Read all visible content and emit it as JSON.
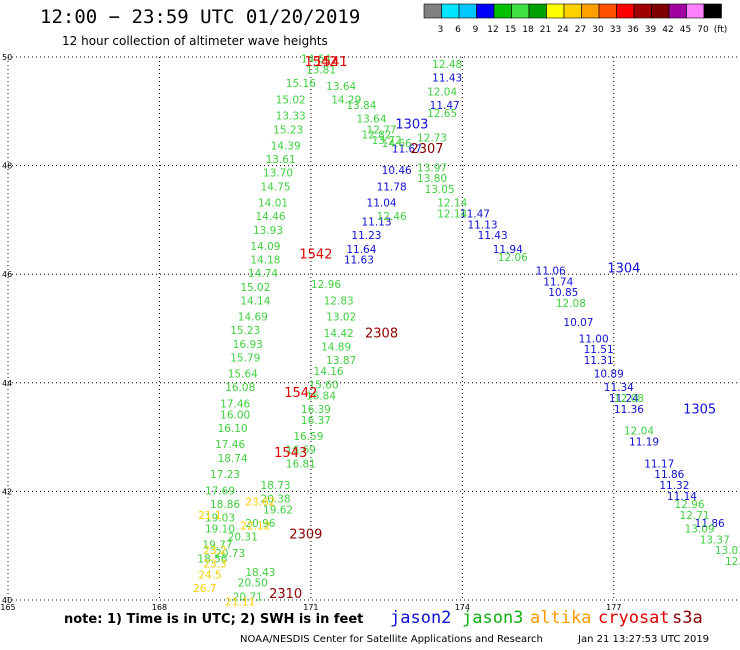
{
  "header": {
    "title": "12:00 − 23:59 UTC 01/20/2019",
    "subtitle": "12 hour collection of altimeter wave heights"
  },
  "colorbar": {
    "labels": [
      "3",
      "6",
      "9",
      "12",
      "15",
      "18",
      "21",
      "24",
      "27",
      "30",
      "33",
      "36",
      "39",
      "42",
      "45",
      "70",
      "(ft)"
    ],
    "colors": [
      "#808080",
      "#00e5ff",
      "#00c8ff",
      "#0000ff",
      "#00c000",
      "#40e040",
      "#00a000",
      "#ffff00",
      "#ffd000",
      "#ffa000",
      "#ff5000",
      "#ff0000",
      "#a00000",
      "#800000",
      "#a000a0",
      "#ff80ff",
      "#000000"
    ]
  },
  "footer": {
    "note": "note: 1) Time is in UTC; 2) SWH is in feet",
    "credit": "NOAA/NESDIS Center for Satellite Applications and Research",
    "timestamp": "Jan 21 13:27:53 UTC 2019"
  },
  "satellites": [
    {
      "name": "jason2",
      "color": "#1010d0"
    },
    {
      "name": "jason3",
      "color": "#10b010"
    },
    {
      "name": "altika",
      "color": "#ff9a00"
    },
    {
      "name": "cryosat",
      "color": "#e00000"
    },
    {
      "name": "s3a",
      "color": "#8b0000"
    }
  ],
  "chart_data": {
    "type": "scatter",
    "title": "12:00 − 23:59 UTC 01/20/2019",
    "subtitle": "12 hour collection of altimeter wave heights",
    "xlim": [
      165,
      179.5
    ],
    "ylim": [
      40,
      50
    ],
    "xticks": [
      165,
      168,
      171,
      174,
      177
    ],
    "yticks": [
      40,
      42,
      44,
      46,
      48,
      50
    ],
    "unit": "ft",
    "grid": true,
    "time_labels": [
      {
        "text": "1542",
        "lon": 171.2,
        "lat": 49.9,
        "color": "#e00000"
      },
      {
        "text": "1541",
        "lon": 171.4,
        "lat": 49.9,
        "color": "#e00000"
      },
      {
        "text": "1303",
        "lon": 173.0,
        "lat": 48.75,
        "color": "#1010d0"
      },
      {
        "text": "2307",
        "lon": 173.3,
        "lat": 48.3,
        "color": "#8b0000"
      },
      {
        "text": "1542",
        "lon": 171.1,
        "lat": 46.35,
        "color": "#e00000"
      },
      {
        "text": "1304",
        "lon": 177.2,
        "lat": 46.1,
        "color": "#1010d0"
      },
      {
        "text": "2308",
        "lon": 172.4,
        "lat": 44.9,
        "color": "#8b0000"
      },
      {
        "text": "1542",
        "lon": 170.8,
        "lat": 43.8,
        "color": "#e00000"
      },
      {
        "text": "1305",
        "lon": 178.7,
        "lat": 43.5,
        "color": "#1010d0"
      },
      {
        "text": "1543",
        "lon": 170.6,
        "lat": 42.7,
        "color": "#e00000"
      },
      {
        "text": "2309",
        "lon": 170.9,
        "lat": 41.2,
        "color": "#8b0000"
      },
      {
        "text": "2310",
        "lon": 170.5,
        "lat": 40.1,
        "color": "#8b0000"
      }
    ],
    "series": [
      {
        "name": "jason2",
        "color": "#1010d0",
        "points": [
          {
            "lon": 173.7,
            "lat": 49.6,
            "v": "11.43"
          },
          {
            "lon": 173.65,
            "lat": 49.1,
            "v": "11.47"
          },
          {
            "lon": 172.9,
            "lat": 48.3,
            "v": "11.67"
          },
          {
            "lon": 172.7,
            "lat": 47.9,
            "v": "10.46"
          },
          {
            "lon": 172.6,
            "lat": 47.6,
            "v": "11.78"
          },
          {
            "lon": 172.4,
            "lat": 47.3,
            "v": "11.04"
          },
          {
            "lon": 172.3,
            "lat": 46.95,
            "v": "11.13"
          },
          {
            "lon": 172.1,
            "lat": 46.7,
            "v": "11.23"
          },
          {
            "lon": 172.0,
            "lat": 46.45,
            "v": "11.64"
          },
          {
            "lon": 171.95,
            "lat": 46.25,
            "v": "11.63"
          },
          {
            "lon": 174.25,
            "lat": 47.1,
            "v": "11.47"
          },
          {
            "lon": 174.4,
            "lat": 46.9,
            "v": "11.13"
          },
          {
            "lon": 174.6,
            "lat": 46.7,
            "v": "11.43"
          },
          {
            "lon": 174.9,
            "lat": 46.45,
            "v": "11.94"
          },
          {
            "lon": 175.75,
            "lat": 46.05,
            "v": "11.06"
          },
          {
            "lon": 175.9,
            "lat": 45.85,
            "v": "11.74"
          },
          {
            "lon": 176.0,
            "lat": 45.65,
            "v": "10.85"
          },
          {
            "lon": 176.3,
            "lat": 45.1,
            "v": "10.07"
          },
          {
            "lon": 176.6,
            "lat": 44.8,
            "v": "11.00"
          },
          {
            "lon": 176.7,
            "lat": 44.6,
            "v": "11.51"
          },
          {
            "lon": 176.7,
            "lat": 44.4,
            "v": "11.31"
          },
          {
            "lon": 176.9,
            "lat": 44.15,
            "v": "10.89"
          },
          {
            "lon": 177.1,
            "lat": 43.9,
            "v": "11.34"
          },
          {
            "lon": 177.2,
            "lat": 43.7,
            "v": "11.24"
          },
          {
            "lon": 177.3,
            "lat": 43.5,
            "v": "11.36"
          },
          {
            "lon": 177.6,
            "lat": 42.9,
            "v": "11.19"
          },
          {
            "lon": 177.9,
            "lat": 42.5,
            "v": "11.17"
          },
          {
            "lon": 178.1,
            "lat": 42.3,
            "v": "11.86"
          },
          {
            "lon": 178.2,
            "lat": 42.1,
            "v": "11.32"
          },
          {
            "lon": 178.35,
            "lat": 41.9,
            "v": "11.14"
          },
          {
            "lon": 178.9,
            "lat": 41.4,
            "v": "11.86"
          }
        ]
      },
      {
        "name": "jason3",
        "color": "#40d040",
        "points": [
          {
            "lon": 173.7,
            "lat": 49.85,
            "v": "12.48"
          },
          {
            "lon": 173.6,
            "lat": 49.35,
            "v": "12.04"
          },
          {
            "lon": 173.6,
            "lat": 48.95,
            "v": "12.65"
          },
          {
            "lon": 173.4,
            "lat": 48.5,
            "v": "12.73"
          },
          {
            "lon": 172.3,
            "lat": 48.55,
            "v": "12.82"
          },
          {
            "lon": 172.7,
            "lat": 48.4,
            "v": "14.66"
          },
          {
            "lon": 173.4,
            "lat": 47.95,
            "v": "13.97"
          },
          {
            "lon": 173.4,
            "lat": 47.75,
            "v": "13.80"
          },
          {
            "lon": 173.55,
            "lat": 47.55,
            "v": "13.05"
          },
          {
            "lon": 173.8,
            "lat": 47.3,
            "v": "12.14"
          },
          {
            "lon": 173.8,
            "lat": 47.1,
            "v": "12.14"
          },
          {
            "lon": 172.6,
            "lat": 47.05,
            "v": "12.46"
          },
          {
            "lon": 175.0,
            "lat": 46.3,
            "v": "12.06"
          },
          {
            "lon": 176.15,
            "lat": 45.45,
            "v": "12.08"
          },
          {
            "lon": 177.3,
            "lat": 43.7,
            "v": "12.08"
          },
          {
            "lon": 177.5,
            "lat": 43.1,
            "v": "12.04"
          },
          {
            "lon": 178.5,
            "lat": 41.75,
            "v": "12.96"
          },
          {
            "lon": 178.6,
            "lat": 41.55,
            "v": "12.71"
          },
          {
            "lon": 178.7,
            "lat": 41.3,
            "v": "13.09"
          },
          {
            "lon": 179.0,
            "lat": 41.1,
            "v": "13.37"
          },
          {
            "lon": 179.3,
            "lat": 40.9,
            "v": "13.03"
          },
          {
            "lon": 179.5,
            "lat": 40.7,
            "v": "12.91"
          },
          {
            "lon": 171.1,
            "lat": 49.95,
            "v": "14.64"
          },
          {
            "lon": 171.2,
            "lat": 49.75,
            "v": "13.81"
          },
          {
            "lon": 171.6,
            "lat": 49.45,
            "v": "13.64"
          },
          {
            "lon": 171.7,
            "lat": 49.2,
            "v": "14.29"
          },
          {
            "lon": 172.0,
            "lat": 49.1,
            "v": "13.84"
          },
          {
            "lon": 172.2,
            "lat": 48.85,
            "v": "13.64"
          },
          {
            "lon": 172.4,
            "lat": 48.65,
            "v": "12.77"
          },
          {
            "lon": 172.5,
            "lat": 48.45,
            "v": "13.72"
          },
          {
            "lon": 170.8,
            "lat": 49.5,
            "v": "15.16"
          },
          {
            "lon": 170.6,
            "lat": 49.2,
            "v": "15.02"
          },
          {
            "lon": 170.6,
            "lat": 48.9,
            "v": "13.33"
          },
          {
            "lon": 170.55,
            "lat": 48.65,
            "v": "15.23"
          },
          {
            "lon": 170.5,
            "lat": 48.35,
            "v": "14.39"
          },
          {
            "lon": 170.4,
            "lat": 48.1,
            "v": "13.61"
          },
          {
            "lon": 170.35,
            "lat": 47.85,
            "v": "13.70"
          },
          {
            "lon": 170.3,
            "lat": 47.6,
            "v": "14.75"
          },
          {
            "lon": 170.25,
            "lat": 47.3,
            "v": "14.01"
          },
          {
            "lon": 170.2,
            "lat": 47.05,
            "v": "14.46"
          },
          {
            "lon": 170.15,
            "lat": 46.8,
            "v": "13.93"
          },
          {
            "lon": 170.1,
            "lat": 46.5,
            "v": "14.09"
          },
          {
            "lon": 170.1,
            "lat": 46.25,
            "v": "14.18"
          },
          {
            "lon": 170.05,
            "lat": 46.0,
            "v": "14.74"
          },
          {
            "lon": 169.9,
            "lat": 45.75,
            "v": "15.02"
          },
          {
            "lon": 169.9,
            "lat": 45.5,
            "v": "14.14"
          },
          {
            "lon": 169.85,
            "lat": 45.2,
            "v": "14.69"
          },
          {
            "lon": 169.7,
            "lat": 44.95,
            "v": "15.23"
          },
          {
            "lon": 169.75,
            "lat": 44.7,
            "v": "16.93"
          },
          {
            "lon": 169.7,
            "lat": 44.45,
            "v": "15.79"
          },
          {
            "lon": 169.65,
            "lat": 44.15,
            "v": "15.64"
          },
          {
            "lon": 169.6,
            "lat": 43.9,
            "v": "16.08"
          },
          {
            "lon": 169.5,
            "lat": 43.6,
            "v": "17.46"
          },
          {
            "lon": 169.5,
            "lat": 43.4,
            "v": "16.00"
          },
          {
            "lon": 169.45,
            "lat": 43.15,
            "v": "16.10"
          },
          {
            "lon": 169.4,
            "lat": 42.85,
            "v": "17.46"
          },
          {
            "lon": 169.45,
            "lat": 42.6,
            "v": "18.74"
          },
          {
            "lon": 169.3,
            "lat": 42.3,
            "v": "17.23"
          },
          {
            "lon": 169.2,
            "lat": 42.0,
            "v": "17.69"
          },
          {
            "lon": 169.3,
            "lat": 41.75,
            "v": "18.86"
          },
          {
            "lon": 169.2,
            "lat": 41.5,
            "v": "19.03"
          },
          {
            "lon": 169.2,
            "lat": 41.3,
            "v": "19.10"
          },
          {
            "lon": 169.15,
            "lat": 41.0,
            "v": "19.77"
          },
          {
            "lon": 169.05,
            "lat": 40.75,
            "v": "18.56"
          },
          {
            "lon": 171.3,
            "lat": 45.8,
            "v": "12.96"
          },
          {
            "lon": 171.55,
            "lat": 45.5,
            "v": "12.83"
          },
          {
            "lon": 171.6,
            "lat": 45.2,
            "v": "13.02"
          },
          {
            "lon": 171.55,
            "lat": 44.9,
            "v": "14.42"
          },
          {
            "lon": 171.5,
            "lat": 44.65,
            "v": "14.89"
          },
          {
            "lon": 171.6,
            "lat": 44.4,
            "v": "13.87"
          },
          {
            "lon": 171.35,
            "lat": 44.2,
            "v": "14.16"
          },
          {
            "lon": 171.25,
            "lat": 43.95,
            "v": "15.60"
          },
          {
            "lon": 171.2,
            "lat": 43.75,
            "v": "16.84"
          },
          {
            "lon": 171.1,
            "lat": 43.5,
            "v": "16.39"
          },
          {
            "lon": 171.1,
            "lat": 43.3,
            "v": "16.37"
          },
          {
            "lon": 170.95,
            "lat": 43.0,
            "v": "16.59"
          },
          {
            "lon": 170.8,
            "lat": 42.75,
            "v": "16.69"
          },
          {
            "lon": 170.8,
            "lat": 42.5,
            "v": "16.81"
          },
          {
            "lon": 170.3,
            "lat": 42.1,
            "v": "18.73"
          },
          {
            "lon": 170.3,
            "lat": 41.85,
            "v": "20.38"
          },
          {
            "lon": 170.35,
            "lat": 41.65,
            "v": "19.62"
          },
          {
            "lon": 170.0,
            "lat": 41.4,
            "v": "20.96"
          },
          {
            "lon": 169.65,
            "lat": 41.15,
            "v": "20.31"
          },
          {
            "lon": 169.4,
            "lat": 40.85,
            "v": "20.73"
          },
          {
            "lon": 170.0,
            "lat": 40.5,
            "v": "18.43"
          },
          {
            "lon": 169.85,
            "lat": 40.3,
            "v": "20.50"
          },
          {
            "lon": 169.75,
            "lat": 40.05,
            "v": "20.71"
          }
        ]
      },
      {
        "name": "altika",
        "color": "#ffd000",
        "points": [
          {
            "lon": 170.0,
            "lat": 41.8,
            "v": "23.62"
          },
          {
            "lon": 169.0,
            "lat": 41.55,
            "v": "21.1"
          },
          {
            "lon": 169.9,
            "lat": 41.35,
            "v": "22.12"
          },
          {
            "lon": 169.1,
            "lat": 40.9,
            "v": "23.2"
          },
          {
            "lon": 169.1,
            "lat": 40.65,
            "v": "23.3"
          },
          {
            "lon": 169.0,
            "lat": 40.45,
            "v": "24.5"
          },
          {
            "lon": 168.9,
            "lat": 40.2,
            "v": "26.7"
          },
          {
            "lon": 169.6,
            "lat": 39.95,
            "v": "21.11"
          }
        ]
      }
    ]
  }
}
